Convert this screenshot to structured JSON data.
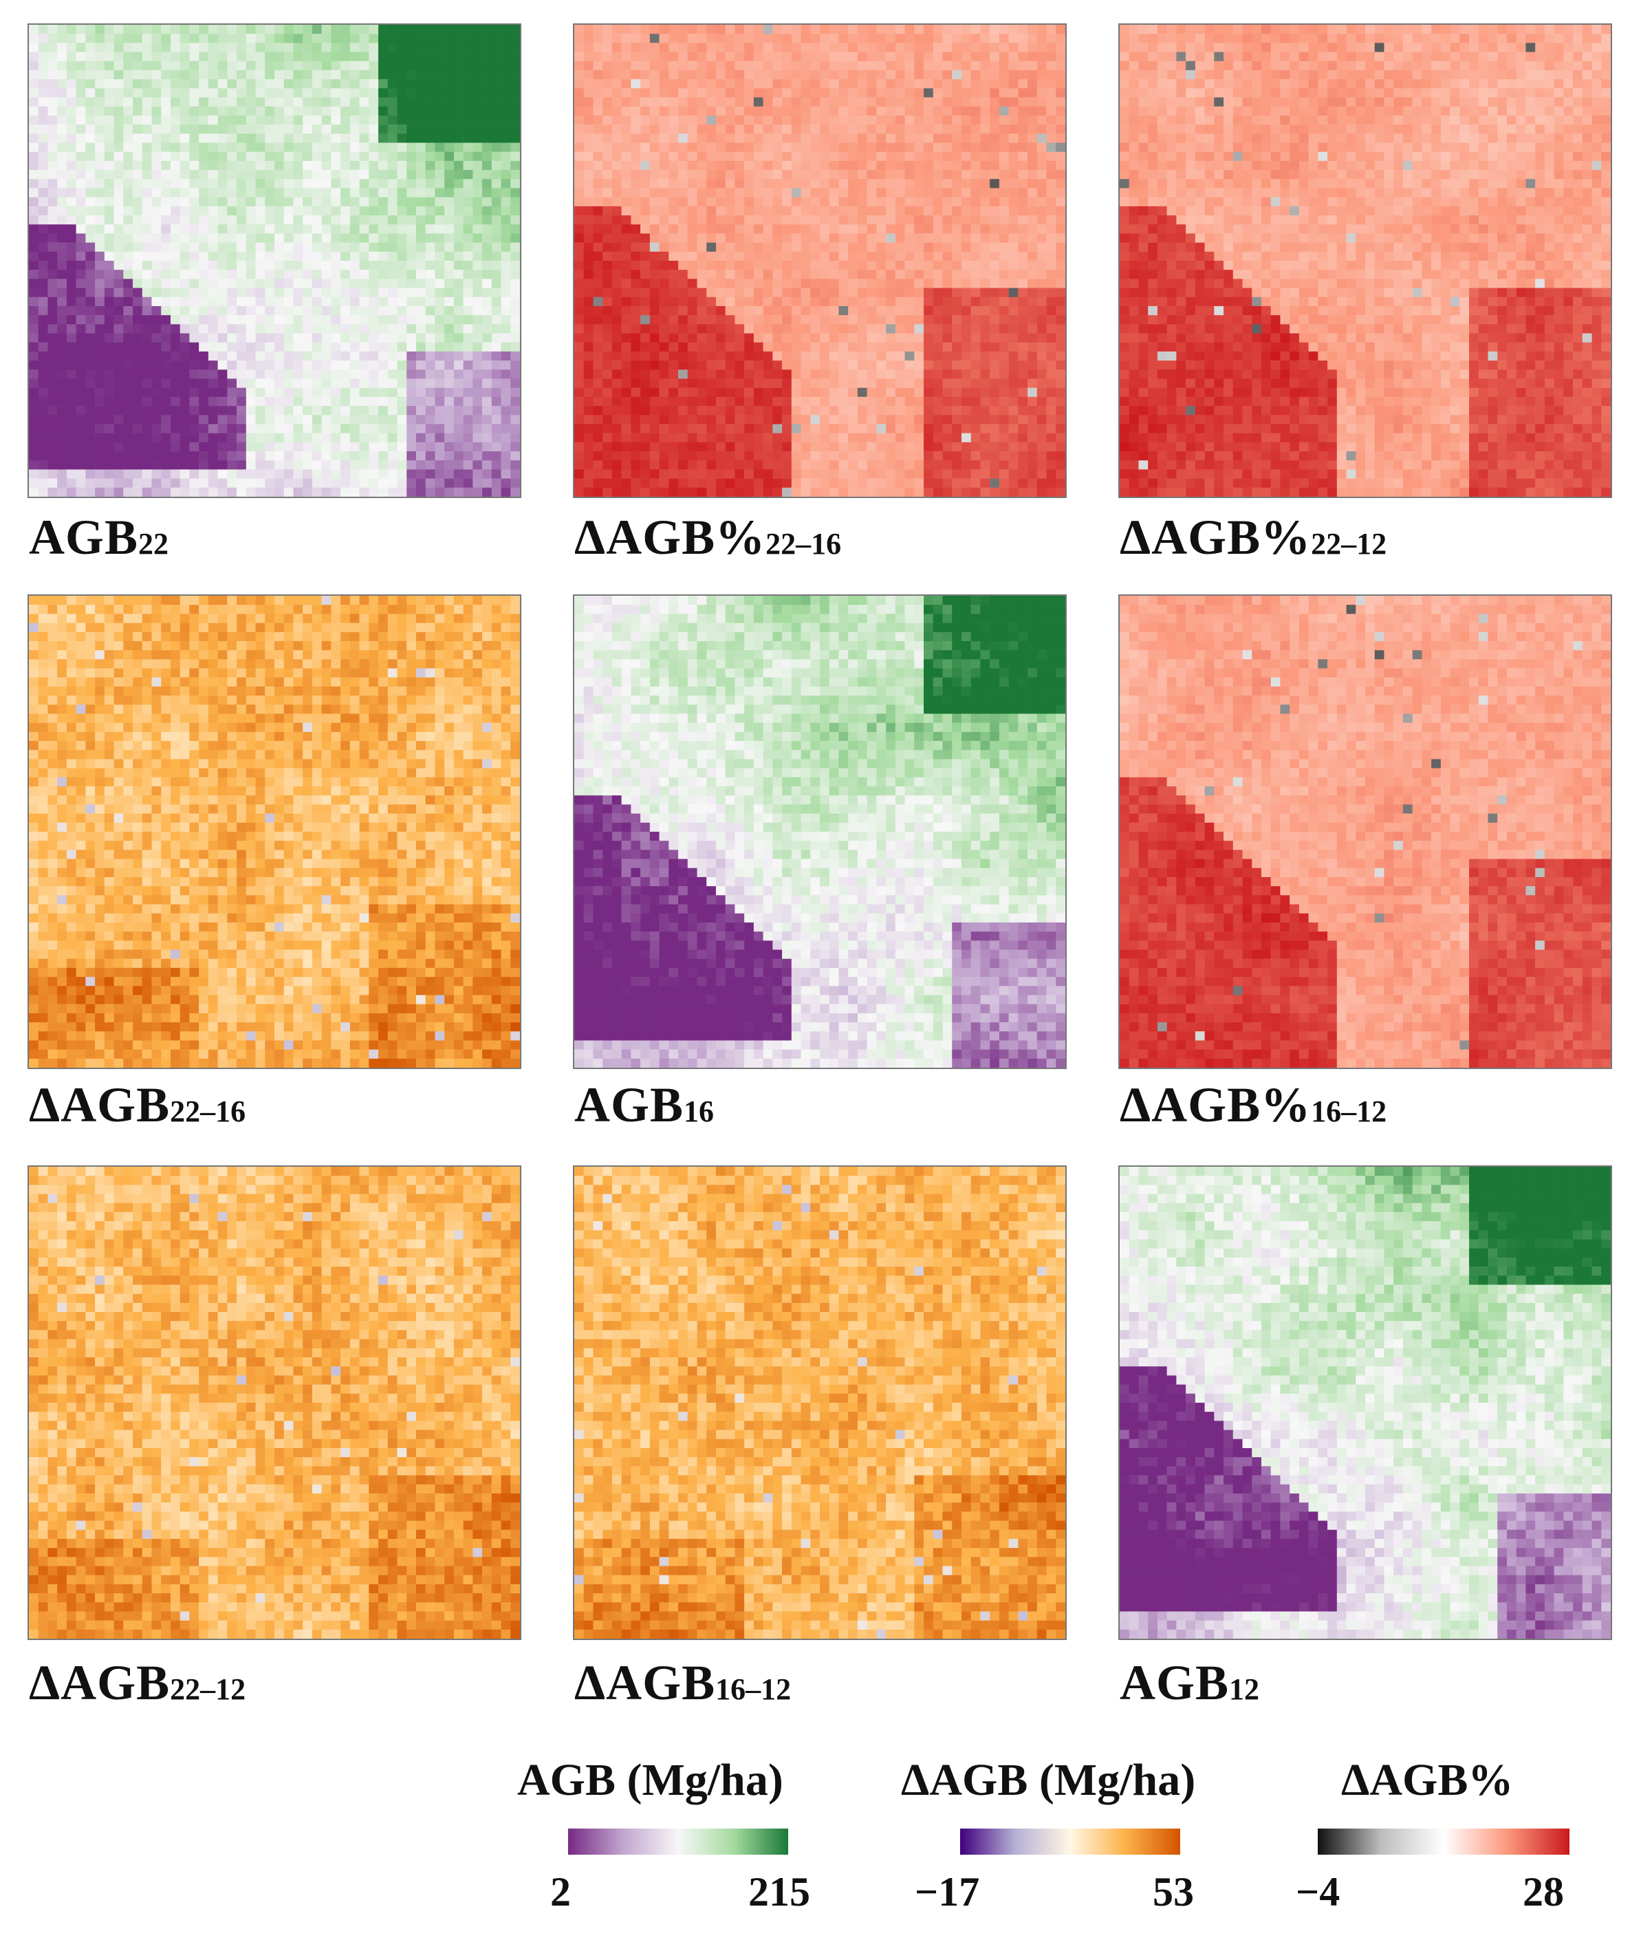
{
  "panels": [
    {
      "id": "p1",
      "label": "AGB",
      "sub": "22",
      "scale": "agb",
      "variant": 0
    },
    {
      "id": "p2",
      "label": "ΔAGB%",
      "sub": "22–16",
      "scale": "pct",
      "variant": 1
    },
    {
      "id": "p3",
      "label": "ΔAGB%",
      "sub": "22–12",
      "scale": "pct",
      "variant": 2
    },
    {
      "id": "p4",
      "label": "ΔAGB",
      "sub": "22–16",
      "scale": "diff",
      "variant": 3
    },
    {
      "id": "p5",
      "label": "AGB",
      "sub": "16",
      "scale": "agb",
      "variant": 4
    },
    {
      "id": "p6",
      "label": "ΔAGB%",
      "sub": "16–12",
      "scale": "pct",
      "variant": 5
    },
    {
      "id": "p7",
      "label": "ΔAGB",
      "sub": "22–12",
      "scale": "diff",
      "variant": 6
    },
    {
      "id": "p8",
      "label": "ΔAGB",
      "sub": "16–12",
      "scale": "diff",
      "variant": 7
    },
    {
      "id": "p9",
      "label": "AGB",
      "sub": "12",
      "scale": "agb",
      "variant": 8
    }
  ],
  "legends": {
    "agb": {
      "title": "AGB (Mg/ha)",
      "min_label": "2",
      "max_label": "215",
      "colors": [
        "#762a83",
        "#c2a5cf",
        "#f7f7f7",
        "#a6dba0",
        "#1b7837"
      ]
    },
    "diff": {
      "title": "ΔAGB (Mg/ha)",
      "min_label": "−17",
      "max_label": "53",
      "colors": [
        "#3f007d",
        "#b6b0d6",
        "#fff7e4",
        "#fdb24a",
        "#d35400"
      ]
    },
    "pct": {
      "title": "ΔAGB%",
      "min_label": "−4",
      "max_label": "28",
      "colors": [
        "#111111",
        "#bdbdbd",
        "#ffffff",
        "#fb9a7e",
        "#cb181d"
      ]
    }
  },
  "chart_data": {
    "type": "heatmap",
    "grid": "3x3 panels",
    "panels": [
      "AGB22",
      "ΔAGB%22–16",
      "ΔAGB%22–12",
      "ΔAGB22–16",
      "AGB16",
      "ΔAGB%16–12",
      "ΔAGB22–12",
      "ΔAGB16–12",
      "AGB12"
    ],
    "scales": [
      {
        "name": "AGB (Mg/ha)",
        "range": [
          2,
          215
        ]
      },
      {
        "name": "ΔAGB (Mg/ha)",
        "range": [
          -17,
          53
        ]
      },
      {
        "name": "ΔAGB%",
        "range": [
          -4,
          28
        ]
      }
    ]
  }
}
